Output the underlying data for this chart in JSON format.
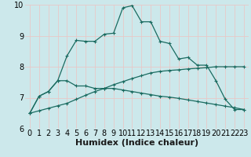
{
  "xlabel": "Humidex (Indice chaleur)",
  "bg_color": "#cce8eb",
  "grid_color": "#e8c8c8",
  "line_color": "#1a6b60",
  "xlim": [
    -0.5,
    23.5
  ],
  "ylim": [
    6,
    10
  ],
  "yticks": [
    6,
    7,
    8,
    9,
    10
  ],
  "xticks": [
    0,
    1,
    2,
    3,
    4,
    5,
    6,
    7,
    8,
    9,
    10,
    11,
    12,
    13,
    14,
    15,
    16,
    17,
    18,
    19,
    20,
    21,
    22,
    23
  ],
  "series1_x": [
    0,
    1,
    2,
    3,
    4,
    5,
    6,
    7,
    8,
    9,
    10,
    11,
    12,
    13,
    14,
    15,
    16,
    17,
    18,
    19,
    20,
    21,
    22,
    23
  ],
  "series1_y": [
    6.5,
    7.05,
    7.2,
    7.55,
    8.35,
    8.85,
    8.82,
    8.82,
    9.05,
    9.08,
    9.9,
    9.97,
    9.45,
    9.45,
    8.82,
    8.75,
    8.25,
    8.3,
    8.05,
    8.05,
    7.55,
    6.95,
    6.62,
    6.62
  ],
  "series2_x": [
    0,
    1,
    2,
    3,
    4,
    5,
    6,
    7,
    8,
    9,
    10,
    11,
    12,
    13,
    14,
    15,
    16,
    17,
    18,
    19,
    20,
    21,
    22,
    23
  ],
  "series2_y": [
    6.5,
    7.05,
    7.2,
    7.55,
    7.55,
    7.38,
    7.38,
    7.3,
    7.3,
    7.3,
    7.25,
    7.2,
    7.15,
    7.1,
    7.05,
    7.02,
    6.98,
    6.93,
    6.88,
    6.83,
    6.78,
    6.73,
    6.68,
    6.62
  ],
  "series3_x": [
    0,
    1,
    2,
    3,
    4,
    5,
    6,
    7,
    8,
    9,
    10,
    11,
    12,
    13,
    14,
    15,
    16,
    17,
    18,
    19,
    20,
    21,
    22,
    23
  ],
  "series3_y": [
    6.5,
    6.58,
    6.66,
    6.74,
    6.82,
    6.95,
    7.08,
    7.2,
    7.3,
    7.42,
    7.52,
    7.62,
    7.71,
    7.8,
    7.85,
    7.88,
    7.9,
    7.93,
    7.95,
    7.97,
    8.0,
    8.0,
    8.0,
    8.0
  ],
  "xlabel_fontsize": 8,
  "tick_fontsize": 7
}
